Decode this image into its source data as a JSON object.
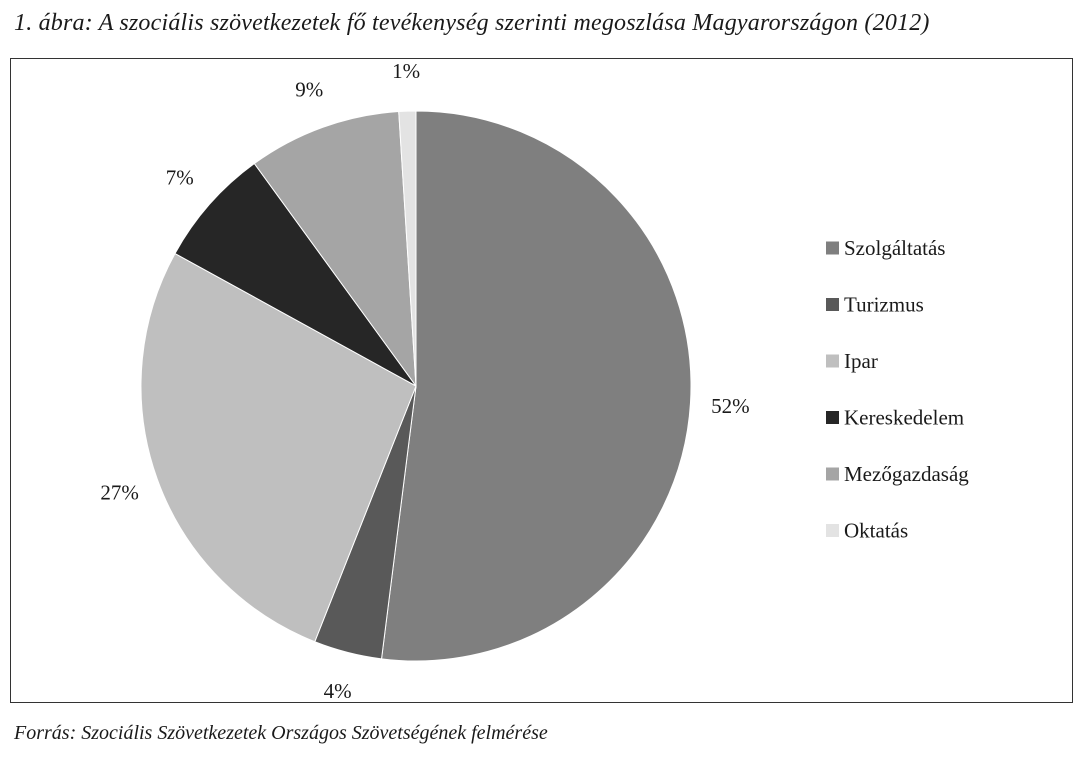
{
  "caption": "1. ábra: A szociális szövetkezetek fő tevékenység szerinti megoszlása Magyarországon (2012)",
  "source": "Forrás: Szociális Szövetkezetek Országos Szövetségének felmérése",
  "chart_data": {
    "type": "pie",
    "title": "",
    "legend_position": "right",
    "slices": [
      {
        "name": "Szolgáltatás",
        "value": 52,
        "label": "52%",
        "color": "#7f7f7f"
      },
      {
        "name": "Turizmus",
        "value": 4,
        "label": "4%",
        "color": "#595959"
      },
      {
        "name": "Ipar",
        "value": 27,
        "label": "27%",
        "color": "#bfbfbf"
      },
      {
        "name": "Kereskedelem",
        "value": 7,
        "label": "7%",
        "color": "#262626"
      },
      {
        "name": "Mezőgazdaság",
        "value": 9,
        "label": "9%",
        "color": "#a5a5a5"
      },
      {
        "name": "Oktatás",
        "value": 1,
        "label": "1%",
        "color": "#e3e3e3"
      }
    ]
  }
}
